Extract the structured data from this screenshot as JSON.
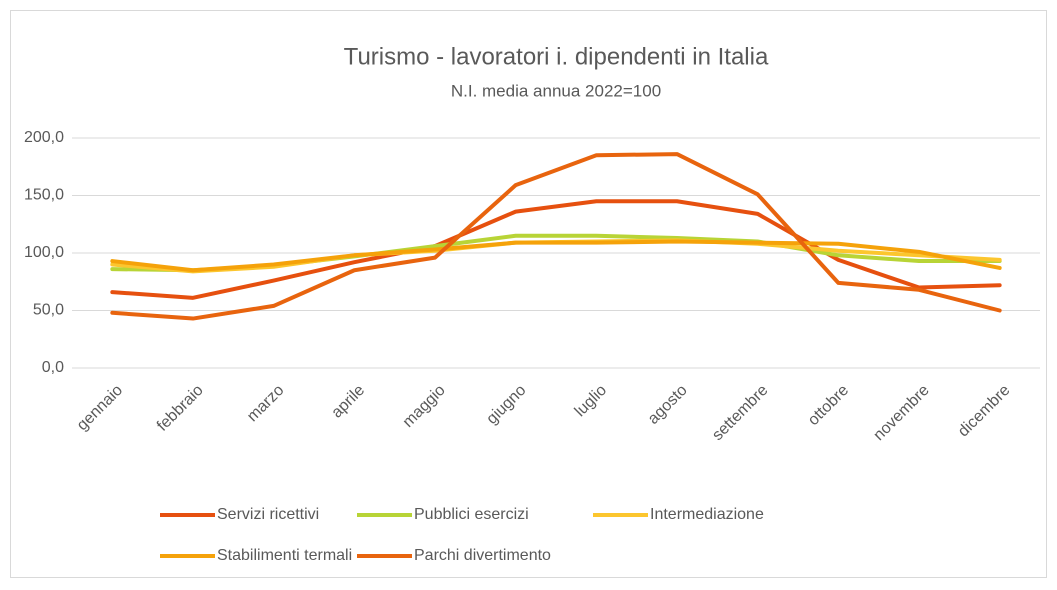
{
  "chart_data": {
    "type": "line",
    "title": "Turismo - lavoratori i. dipendenti in Italia",
    "subtitle": "N.I. media annua 2022=100",
    "categories": [
      "gennaio",
      "febbraio",
      "marzo",
      "aprile",
      "maggio",
      "giugno",
      "luglio",
      "agosto",
      "settembre",
      "ottobre",
      "novembre",
      "dicembre"
    ],
    "series": [
      {
        "name": "Servizi ricettivi",
        "color": "#e6500f",
        "values": [
          66,
          61,
          76,
          92,
          106,
          136,
          145,
          145,
          134,
          94,
          70,
          72
        ]
      },
      {
        "name": "Pubblici esercizi",
        "color": "#b8d436",
        "values": [
          86,
          85,
          89,
          97,
          106,
          115,
          115,
          113,
          110,
          98,
          93,
          93
        ]
      },
      {
        "name": "Intermediazione",
        "color": "#fcc62e",
        "values": [
          90,
          84,
          88,
          98,
          102,
          109,
          110,
          111,
          108,
          102,
          98,
          94
        ]
      },
      {
        "name": "Stabilimenti termali",
        "color": "#f5a20a",
        "values": [
          93,
          85,
          90,
          98,
          103,
          109,
          109,
          110,
          109,
          108,
          101,
          87
        ]
      },
      {
        "name": "Parchi divertimento",
        "color": "#e8640e",
        "values": [
          48,
          43,
          54,
          85,
          96,
          159,
          185,
          186,
          151,
          74,
          68,
          50
        ]
      }
    ],
    "ylim": [
      0,
      200
    ],
    "yticks": [
      {
        "value": 0,
        "label": "0,0"
      },
      {
        "value": 50,
        "label": "50,0"
      },
      {
        "value": 100,
        "label": "100,0"
      },
      {
        "value": 150,
        "label": "150,0"
      },
      {
        "value": 200,
        "label": "200,0"
      }
    ],
    "grid": true,
    "legend": "bottom"
  }
}
